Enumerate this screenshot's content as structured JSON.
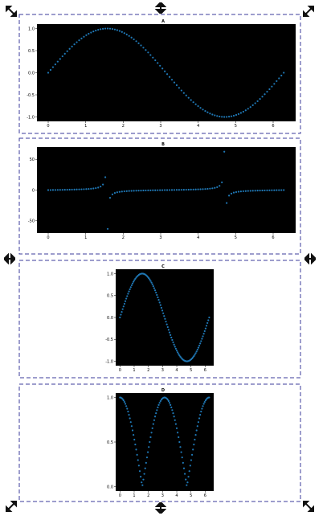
{
  "colors": {
    "frame": "#3b3b9b",
    "plot_bg": "#000000",
    "marker": "#1f77b4",
    "handle": "#111111"
  },
  "handles": {
    "top_left": "diagonal-resize-icon",
    "top_center": "vertical-resize-icon",
    "top_right": "diagonal-resize-icon",
    "middle_left": "horizontal-resize-icon",
    "middle_right": "horizontal-resize-icon",
    "bottom_left": "diagonal-resize-icon",
    "bottom_center": "vertical-resize-icon",
    "bottom_right": "diagonal-resize-icon"
  },
  "chart_data": [
    {
      "type": "scatter",
      "title": "A",
      "function": "sin(x)",
      "x_range": [
        0,
        6.283
      ],
      "n_points": 100,
      "xlim": [
        -0.3,
        6.6
      ],
      "ylim": [
        -1.1,
        1.1
      ],
      "xticks": [
        0,
        1,
        2,
        3,
        4,
        5,
        6
      ],
      "yticks": [
        -1.0,
        -0.5,
        0.0,
        0.5,
        1.0
      ],
      "ytick_labels": [
        "-1.0",
        "-0.5",
        "0.0",
        "0.5",
        "1.0"
      ],
      "grid": false
    },
    {
      "type": "scatter",
      "title": "B",
      "function": "tan(x)",
      "x_range": [
        0,
        6.283
      ],
      "n_points": 100,
      "xlim": [
        -0.3,
        6.6
      ],
      "ylim": [
        -70,
        70
      ],
      "xticks": [
        0,
        1,
        2,
        3,
        4,
        5,
        6
      ],
      "yticks": [
        -50,
        0,
        50
      ],
      "ytick_labels": [
        "-50",
        "0",
        "50"
      ],
      "grid": false
    },
    {
      "type": "scatter",
      "title": "C",
      "function": "sin(x)",
      "x_range": [
        0,
        6.283
      ],
      "n_points": 100,
      "xlim": [
        -0.3,
        6.6
      ],
      "ylim": [
        -1.1,
        1.1
      ],
      "xticks": [
        0,
        1,
        2,
        3,
        4,
        5,
        6
      ],
      "yticks": [
        -1.0,
        -0.5,
        0.0,
        0.5,
        1.0
      ],
      "ytick_labels": [
        "-1.0",
        "-0.5",
        "0.0",
        "0.5",
        "1.0"
      ],
      "grid": false
    },
    {
      "type": "scatter",
      "title": "D",
      "function": "abs(cos(x))",
      "x_range": [
        0,
        6.283
      ],
      "n_points": 100,
      "xlim": [
        -0.3,
        6.6
      ],
      "ylim": [
        -0.05,
        1.05
      ],
      "xticks": [
        0,
        1,
        2,
        3,
        4,
        5,
        6
      ],
      "yticks": [
        0.0,
        0.5,
        1.0
      ],
      "ytick_labels": [
        "0.0",
        "0.5",
        "1.0"
      ],
      "grid": false
    }
  ]
}
